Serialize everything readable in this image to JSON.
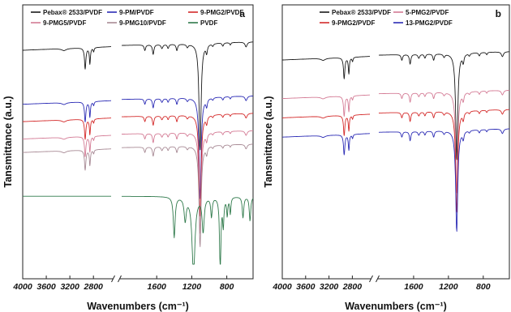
{
  "chart_data": [
    {
      "type": "line",
      "panel_label": "a",
      "xlabel": "Wavenumbers (cm⁻¹)",
      "ylabel": "Tansmittance (a.u.)",
      "xlim": [
        4000,
        500
      ],
      "x_ticks": [
        "4000",
        "3600",
        "3200",
        "2800",
        "1600",
        "1200",
        "800"
      ],
      "axis_break": [
        2500,
        2000
      ],
      "legend_position": "top",
      "series": [
        {
          "name": "Pebax® 2533/PVDF",
          "color": "#1a1a1a",
          "offset": 1.0,
          "strength": 1.0,
          "kind": "pebax"
        },
        {
          "name": "9-PM/PVDF",
          "color": "#2b2bb5",
          "offset": 0.72,
          "strength": 0.95,
          "kind": "pebax"
        },
        {
          "name": "9-PMG2/PVDF",
          "color": "#d42a2a",
          "offset": 0.63,
          "strength": 0.95,
          "kind": "pebax"
        },
        {
          "name": "9-PMG5/PVDF",
          "color": "#d47b95",
          "offset": 0.54,
          "strength": 0.95,
          "kind": "pebax"
        },
        {
          "name": "9-PMG10/PVDF",
          "color": "#a88a95",
          "offset": 0.47,
          "strength": 0.95,
          "kind": "pebax"
        },
        {
          "name": "PVDF",
          "color": "#2f7a4b",
          "offset": 0.1,
          "strength": 1.0,
          "kind": "pvdf"
        }
      ]
    },
    {
      "type": "line",
      "panel_label": "b",
      "xlabel": "Wavenumbers (cm⁻¹)",
      "ylabel": "Tansmittance (a.u.)",
      "xlim": [
        4000,
        500
      ],
      "x_ticks": [
        "4000",
        "3600",
        "3200",
        "2800",
        "1600",
        "1200",
        "800"
      ],
      "axis_break": [
        2500,
        2000
      ],
      "legend_position": "top",
      "series": [
        {
          "name": "Pebax® 2533/PVDF",
          "color": "#1a1a1a",
          "offset": 1.0,
          "strength": 1.0,
          "kind": "pebax"
        },
        {
          "name": "5-PMG2/PVDF",
          "color": "#d47b95",
          "offset": 0.8,
          "strength": 0.95,
          "kind": "pebax"
        },
        {
          "name": "9-PMG2/PVDF",
          "color": "#d42a2a",
          "offset": 0.7,
          "strength": 0.95,
          "kind": "pebax"
        },
        {
          "name": "13-PMG2/PVDF",
          "color": "#2b2bb5",
          "offset": 0.6,
          "strength": 0.95,
          "kind": "pebax"
        }
      ]
    }
  ]
}
